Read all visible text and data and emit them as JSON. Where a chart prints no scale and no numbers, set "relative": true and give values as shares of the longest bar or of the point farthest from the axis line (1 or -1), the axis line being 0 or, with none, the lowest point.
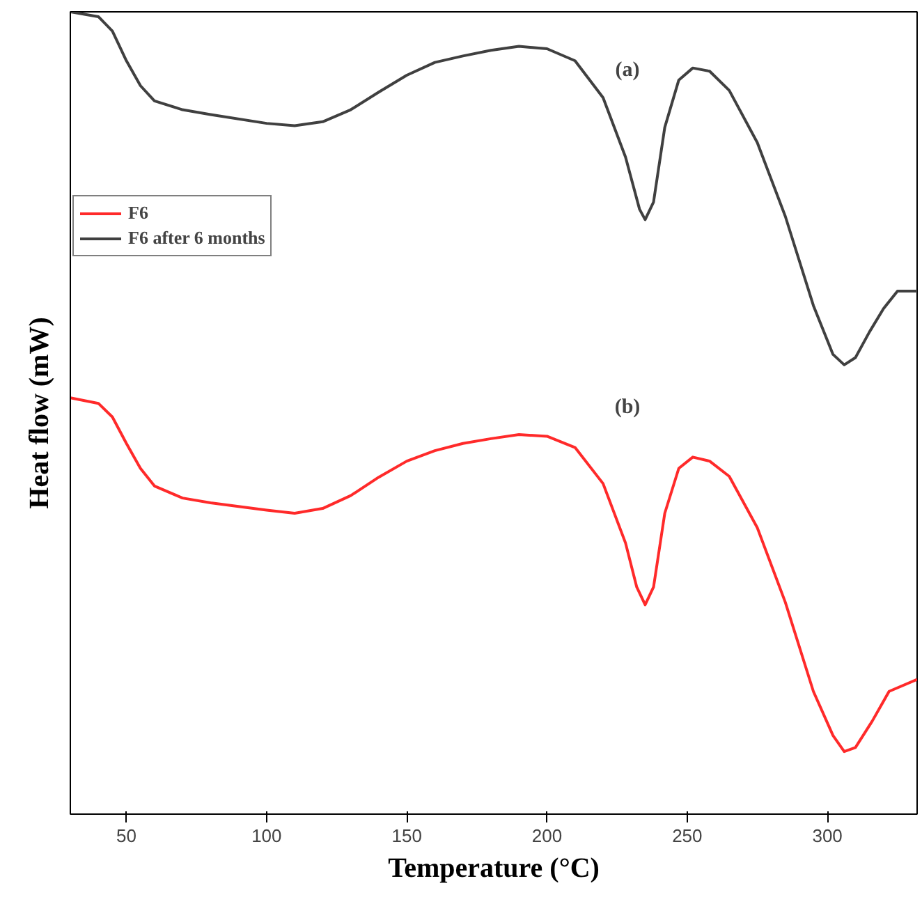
{
  "chart_data": {
    "type": "line",
    "relative": true,
    "xlabel": "Temperature (°C)",
    "ylabel": "Heat flow (mW)",
    "xlim": [
      30,
      332
    ],
    "xticks": [
      50,
      100,
      150,
      200,
      250,
      300
    ],
    "tick_labels": "x",
    "grid": false,
    "legend": "top left",
    "marker": "none",
    "line_style": "solid",
    "series": [
      {
        "name": "F6",
        "color": "#ff2a2a",
        "x": [
          30,
          40,
          45,
          50,
          55,
          60,
          70,
          80,
          100,
          110,
          120,
          130,
          140,
          150,
          160,
          170,
          180,
          190,
          200,
          210,
          220,
          228,
          232,
          235,
          238,
          242,
          247,
          252,
          258,
          265,
          275,
          285,
          295,
          302,
          306,
          310,
          316,
          322,
          332
        ],
        "values": [
          0.519,
          0.512,
          0.495,
          0.462,
          0.431,
          0.409,
          0.394,
          0.388,
          0.379,
          0.375,
          0.381,
          0.397,
          0.42,
          0.44,
          0.453,
          0.462,
          0.468,
          0.473,
          0.471,
          0.457,
          0.412,
          0.338,
          0.283,
          0.261,
          0.283,
          0.375,
          0.431,
          0.445,
          0.44,
          0.421,
          0.357,
          0.264,
          0.153,
          0.098,
          0.078,
          0.083,
          0.116,
          0.153,
          0.168
        ]
      },
      {
        "name": "F6 after 6 months",
        "color": "#404040",
        "x": [
          30,
          40,
          45,
          50,
          55,
          60,
          70,
          80,
          100,
          110,
          120,
          130,
          140,
          150,
          160,
          170,
          180,
          190,
          200,
          210,
          220,
          228,
          233,
          235,
          238,
          242,
          247,
          252,
          258,
          265,
          275,
          285,
          295,
          302,
          306,
          310,
          315,
          320,
          325,
          332
        ],
        "values": [
          1.0,
          0.994,
          0.976,
          0.939,
          0.908,
          0.889,
          0.878,
          0.872,
          0.861,
          0.858,
          0.863,
          0.878,
          0.9,
          0.921,
          0.937,
          0.945,
          0.952,
          0.957,
          0.954,
          0.939,
          0.893,
          0.819,
          0.754,
          0.741,
          0.763,
          0.856,
          0.915,
          0.93,
          0.926,
          0.902,
          0.837,
          0.745,
          0.634,
          0.573,
          0.56,
          0.569,
          0.601,
          0.63,
          0.652,
          0.652
        ]
      }
    ],
    "annotations": [
      "(a)",
      "(b)"
    ]
  }
}
